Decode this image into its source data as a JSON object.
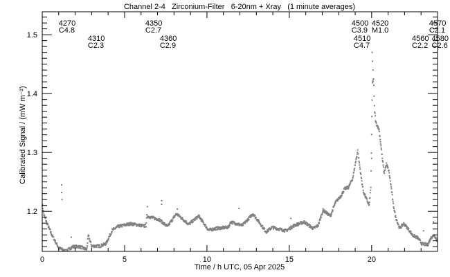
{
  "chart_data": {
    "type": "scatter",
    "title": "Channel 2-4   Zirconium-Filter   6-20nm + Xray   (1 minute averages)",
    "xlabel": "Time / h UTC, 05 Apr 2025",
    "ylabel": "Calibrated Signal / (mW m⁻²)",
    "xlim": [
      0,
      24
    ],
    "ylim": [
      1.132,
      1.539
    ],
    "xticks": [
      0,
      5,
      10,
      15,
      20
    ],
    "xtick_labels": [
      "0",
      "5",
      "10",
      "15",
      "20"
    ],
    "yticks": [
      1.2,
      1.3,
      1.4,
      1.5
    ],
    "ytick_labels": [
      "1.2",
      "1.3",
      "1.4",
      "1.5"
    ],
    "grid": false,
    "series": [
      {
        "name": "1 minute averages",
        "color": "#808080",
        "x": [
          0,
          0.1,
          0.3,
          0.6,
          1.0,
          1.3,
          1.43,
          1.85,
          2.27,
          2.7,
          2.8,
          3.0,
          3.5,
          3.87,
          4.25,
          4.6,
          5.35,
          6.2,
          6.3,
          6.35,
          7.1,
          7.6,
          8.15,
          8.9,
          9.5,
          10.1,
          10.55,
          11.3,
          11.45,
          12.15,
          12.8,
          13.6,
          13.95,
          14.8,
          15.3,
          15.9,
          16.45,
          16.75,
          17.05,
          17.5,
          17.8,
          18.15,
          18.35,
          18.6,
          18.85,
          19.15,
          19.35,
          19.5,
          19.85,
          19.95,
          20.05,
          20.12,
          20.17,
          20.25,
          20.45,
          20.6,
          20.75,
          20.9,
          21.05,
          21.2,
          21.3,
          21.45,
          21.7,
          21.95,
          22.2,
          22.5,
          22.8,
          23.05,
          23.4,
          23.6,
          23.8,
          24
        ],
        "y": [
          1.212,
          1.194,
          1.179,
          1.159,
          1.138,
          1.134,
          1.132,
          1.14,
          1.14,
          1.135,
          1.159,
          1.141,
          1.141,
          1.145,
          1.168,
          1.174,
          1.179,
          1.175,
          1.176,
          1.192,
          1.186,
          1.174,
          1.196,
          1.178,
          1.192,
          1.168,
          1.171,
          1.173,
          1.182,
          1.176,
          1.196,
          1.165,
          1.173,
          1.167,
          1.176,
          1.182,
          1.171,
          1.176,
          1.202,
          1.192,
          1.215,
          1.227,
          1.238,
          1.241,
          1.256,
          1.303,
          1.261,
          1.233,
          1.21,
          1.24,
          1.418,
          1.426,
          1.374,
          1.351,
          1.339,
          1.303,
          1.265,
          1.28,
          1.268,
          1.238,
          1.214,
          1.191,
          1.171,
          1.179,
          1.171,
          1.159,
          1.155,
          1.145,
          1.143,
          1.155,
          1.16,
          1.15
        ]
      }
    ],
    "outliers": {
      "x": [
        1.18,
        1.18,
        1.2,
        1.76,
        6.38,
        7.25,
        7.25,
        8.2,
        11.95,
        15.1,
        20.03,
        20.05,
        20.08,
        20.0,
        23.15,
        23.75
      ],
      "y": [
        1.245,
        1.232,
        1.22,
        1.156,
        1.208,
        1.218,
        1.212,
        1.204,
        1.205,
        1.188,
        1.47,
        1.455,
        1.44,
        1.29,
        1.167,
        1.182
      ]
    },
    "annotations": [
      {
        "time": 1.0,
        "row": "upper",
        "id": "4270",
        "class": "C4.8"
      },
      {
        "time": 2.77,
        "row": "lower",
        "id": "4310",
        "class": "C2.3"
      },
      {
        "time": 6.26,
        "row": "upper",
        "id": "4350",
        "class": "C2.7"
      },
      {
        "time": 7.14,
        "row": "lower",
        "id": "4360",
        "class": "C2.9"
      },
      {
        "time": 18.78,
        "row": "upper",
        "id": "4500",
        "class": "C3.9"
      },
      {
        "time": 20.0,
        "row": "upper",
        "id": "4520",
        "class": "M1.0"
      },
      {
        "time": 18.91,
        "row": "lower",
        "id": "4510",
        "class": "C4.7"
      },
      {
        "time": 23.49,
        "row": "upper",
        "id": "4570",
        "class": "C2.1"
      },
      {
        "time": 23.03,
        "row": "lower",
        "id": "4560",
        "class": "C2.2"
      },
      {
        "time": 23.57,
        "row": "lower",
        "id": "4580",
        "class": "C2.6"
      }
    ]
  }
}
